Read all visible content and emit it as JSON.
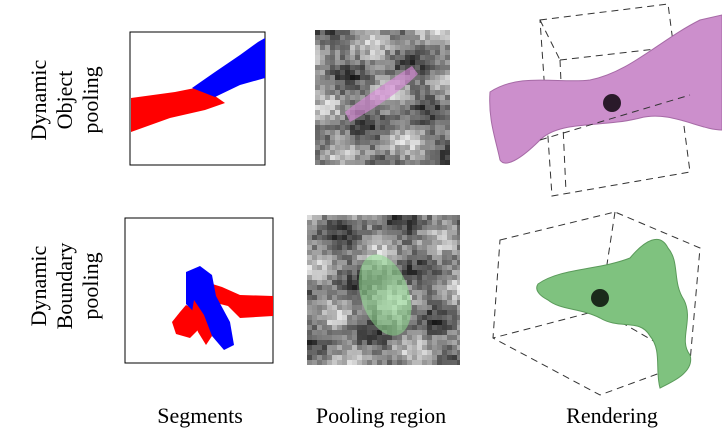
{
  "rows": [
    {
      "label": [
        "Dynamic",
        "Object",
        "pooling"
      ]
    },
    {
      "label": [
        "Dynamic",
        "Boundary",
        "pooling"
      ]
    }
  ],
  "columns": [
    "Segments",
    "Pooling region",
    "Rendering"
  ]
}
